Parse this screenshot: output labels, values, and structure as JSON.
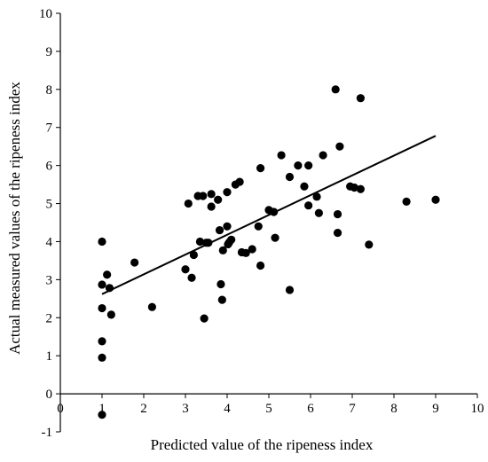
{
  "chart_data": {
    "type": "scatter",
    "title": "",
    "xlabel": "Predicted value of the  ripeness index",
    "ylabel": "Actual measured values of the ripeness index",
    "xlim": [
      0,
      10
    ],
    "ylim": [
      -1,
      10
    ],
    "x_ticks": [
      "0",
      "1",
      "2",
      "3",
      "4",
      "5",
      "6",
      "7",
      "8",
      "9",
      "10"
    ],
    "y_ticks": [
      "-1",
      "0",
      "1",
      "2",
      "3",
      "4",
      "5",
      "6",
      "7",
      "8",
      "9",
      "10"
    ],
    "grid": false,
    "legend": "none",
    "marker_color": "#000000",
    "points": [
      {
        "x": 1.0,
        "y": -0.55
      },
      {
        "x": 1.0,
        "y": 0.95
      },
      {
        "x": 1.0,
        "y": 1.38
      },
      {
        "x": 1.0,
        "y": 2.25
      },
      {
        "x": 1.0,
        "y": 2.87
      },
      {
        "x": 1.0,
        "y": 4.0
      },
      {
        "x": 1.12,
        "y": 3.13
      },
      {
        "x": 1.18,
        "y": 2.78
      },
      {
        "x": 1.22,
        "y": 2.08
      },
      {
        "x": 1.78,
        "y": 3.45
      },
      {
        "x": 2.2,
        "y": 2.28
      },
      {
        "x": 3.0,
        "y": 3.27
      },
      {
        "x": 3.07,
        "y": 5.0
      },
      {
        "x": 3.15,
        "y": 3.05
      },
      {
        "x": 3.2,
        "y": 3.65
      },
      {
        "x": 3.3,
        "y": 5.2
      },
      {
        "x": 3.35,
        "y": 4.0
      },
      {
        "x": 3.42,
        "y": 5.2
      },
      {
        "x": 3.45,
        "y": 1.98
      },
      {
        "x": 3.5,
        "y": 3.97
      },
      {
        "x": 3.55,
        "y": 3.97
      },
      {
        "x": 3.62,
        "y": 5.25
      },
      {
        "x": 3.62,
        "y": 4.92
      },
      {
        "x": 3.78,
        "y": 5.1
      },
      {
        "x": 3.82,
        "y": 4.3
      },
      {
        "x": 3.85,
        "y": 2.88
      },
      {
        "x": 3.88,
        "y": 2.47
      },
      {
        "x": 3.9,
        "y": 3.77
      },
      {
        "x": 4.0,
        "y": 4.4
      },
      {
        "x": 4.0,
        "y": 5.3
      },
      {
        "x": 4.02,
        "y": 3.93
      },
      {
        "x": 4.05,
        "y": 3.98
      },
      {
        "x": 4.1,
        "y": 4.05
      },
      {
        "x": 4.2,
        "y": 5.5
      },
      {
        "x": 4.3,
        "y": 5.57
      },
      {
        "x": 4.35,
        "y": 3.72
      },
      {
        "x": 4.45,
        "y": 3.7
      },
      {
        "x": 4.6,
        "y": 3.8
      },
      {
        "x": 4.75,
        "y": 4.4
      },
      {
        "x": 4.8,
        "y": 5.93
      },
      {
        "x": 4.8,
        "y": 3.37
      },
      {
        "x": 5.0,
        "y": 4.83
      },
      {
        "x": 5.12,
        "y": 4.78
      },
      {
        "x": 5.15,
        "y": 4.1
      },
      {
        "x": 5.3,
        "y": 6.27
      },
      {
        "x": 5.5,
        "y": 5.7
      },
      {
        "x": 5.5,
        "y": 2.73
      },
      {
        "x": 5.7,
        "y": 6.0
      },
      {
        "x": 5.85,
        "y": 5.45
      },
      {
        "x": 5.95,
        "y": 6.0
      },
      {
        "x": 5.95,
        "y": 4.95
      },
      {
        "x": 6.15,
        "y": 5.18
      },
      {
        "x": 6.2,
        "y": 4.75
      },
      {
        "x": 6.3,
        "y": 6.27
      },
      {
        "x": 6.6,
        "y": 8.0
      },
      {
        "x": 6.65,
        "y": 4.72
      },
      {
        "x": 6.65,
        "y": 4.23
      },
      {
        "x": 6.7,
        "y": 6.5
      },
      {
        "x": 6.95,
        "y": 5.45
      },
      {
        "x": 7.05,
        "y": 5.42
      },
      {
        "x": 7.2,
        "y": 7.77
      },
      {
        "x": 7.2,
        "y": 5.38
      },
      {
        "x": 7.4,
        "y": 3.92
      },
      {
        "x": 8.3,
        "y": 5.05
      },
      {
        "x": 9.0,
        "y": 5.1
      }
    ],
    "trendline": {
      "x": [
        1.0,
        9.0
      ],
      "y": [
        2.62,
        6.78
      ]
    }
  }
}
